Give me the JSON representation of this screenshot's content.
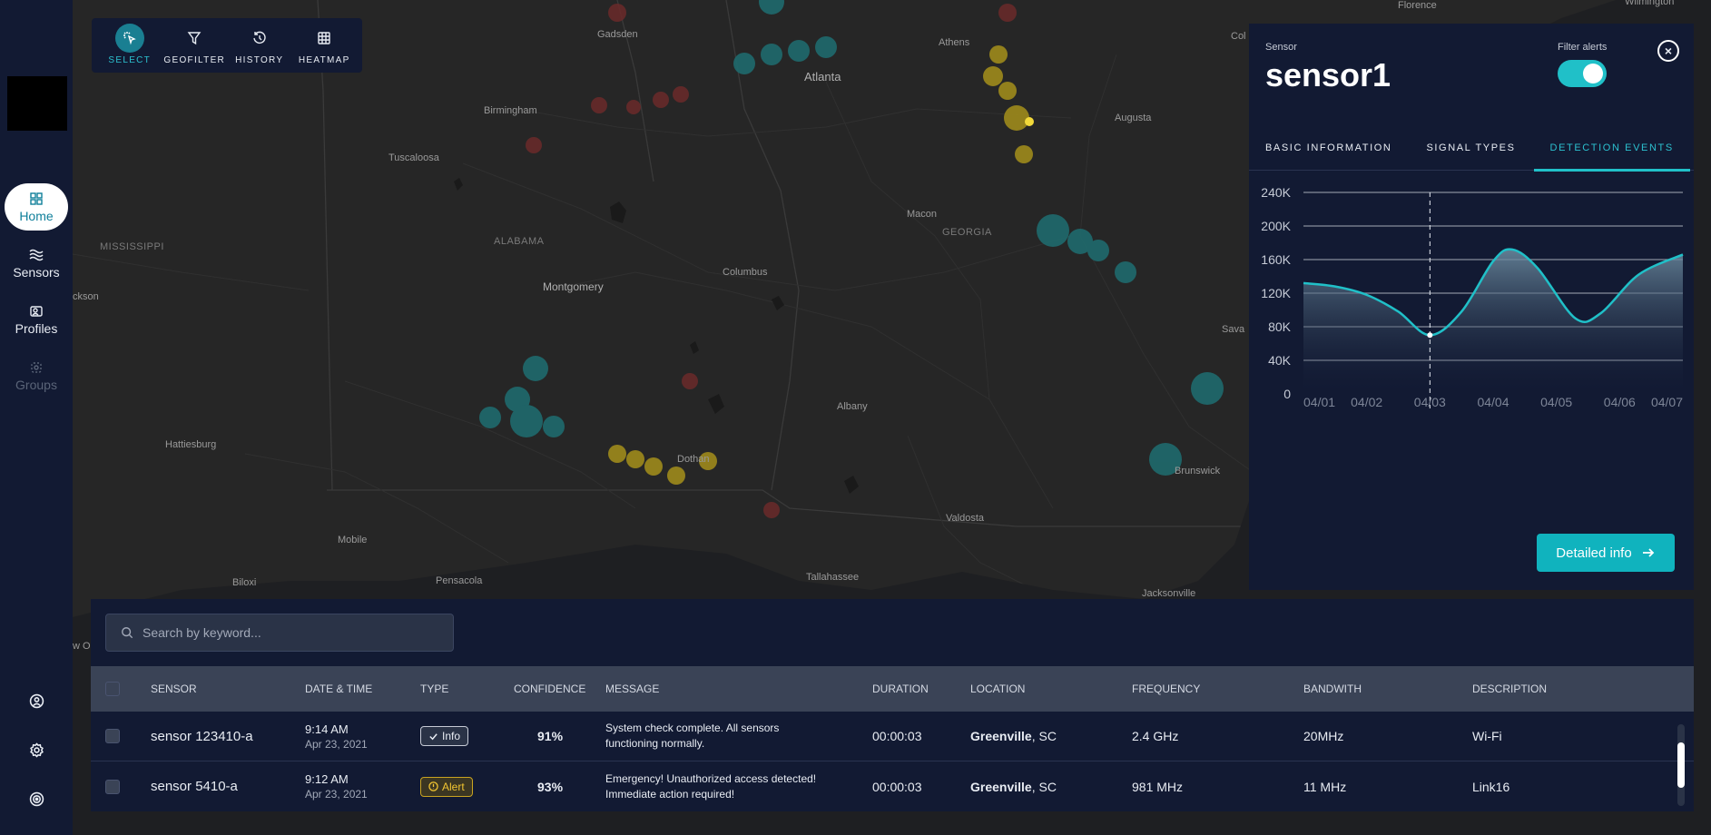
{
  "sidebar": {
    "items": [
      {
        "label": "Home",
        "icon": "grid-icon",
        "active": true
      },
      {
        "label": "Sensors",
        "icon": "waves-icon"
      },
      {
        "label": "Profiles",
        "icon": "profiles-icon"
      },
      {
        "label": "Groups",
        "icon": "groups-icon",
        "disabled": true
      }
    ],
    "bottom_icons": [
      "user-circle-icon",
      "settings-icon",
      "target-icon"
    ]
  },
  "map": {
    "cities": [
      "Florence",
      "Wilmington",
      "Gadsden",
      "Athens",
      "Atlanta",
      "Birmingham",
      "Augusta",
      "Tuscaloosa",
      "Macon",
      "GEORGIA",
      "ALABAMA",
      "MISSISSIPPI",
      "ckson",
      "Columbus",
      "Montgomery",
      "Sava",
      "Albany",
      "Hattiesburg",
      "Dothan",
      "Brunswick",
      "Valdosta",
      "Mobile",
      "Biloxi",
      "Pensacola",
      "Tallahassee",
      "Jacksonville",
      "Col",
      "w O"
    ]
  },
  "toolbar": {
    "tools": [
      {
        "label": "SELECT",
        "icon": "select-icon",
        "active": true
      },
      {
        "label": "GEOFILTER",
        "icon": "filter-icon"
      },
      {
        "label": "HISTORY",
        "icon": "history-icon"
      },
      {
        "label": "HEATMAP",
        "icon": "heatmap-icon"
      }
    ]
  },
  "panel": {
    "subtitle": "Sensor",
    "title": "sensor1",
    "filter_label": "Filter alerts",
    "filter_on": true,
    "close_icon": "close-icon",
    "tabs": [
      "BASIC INFORMATION",
      "SIGNAL TYPES",
      "DETECTION EVENTS"
    ],
    "active_tab": 2,
    "button_label": "Detailed info",
    "button_icon": "arrow-right-icon",
    "accent_color": "#20c0c8"
  },
  "chart_data": {
    "type": "area",
    "x": [
      "04/01",
      "04/02",
      "04/03",
      "04/04",
      "04/05",
      "04/06",
      "04/07"
    ],
    "yticks": [
      "0",
      "40K",
      "80K",
      "120K",
      "160K",
      "200K",
      "240K"
    ],
    "ylim": [
      0,
      240000
    ],
    "points": [
      {
        "x": 0.0,
        "y": 132000
      },
      {
        "x": 0.5,
        "y": 128000
      },
      {
        "x": 1.0,
        "y": 118000
      },
      {
        "x": 1.5,
        "y": 98000
      },
      {
        "x": 2.0,
        "y": 70000
      },
      {
        "x": 2.5,
        "y": 98000
      },
      {
        "x": 3.0,
        "y": 158000
      },
      {
        "x": 3.3,
        "y": 172000
      },
      {
        "x": 3.7,
        "y": 150000
      },
      {
        "x": 4.3,
        "y": 90000
      },
      {
        "x": 4.7,
        "y": 96000
      },
      {
        "x": 5.3,
        "y": 142000
      },
      {
        "x": 6.0,
        "y": 166000
      }
    ],
    "marker_x": 2.0,
    "grid": true
  },
  "table": {
    "search_placeholder": "Search by keyword...",
    "headers": [
      "SENSOR",
      "DATE & TIME",
      "TYPE",
      "CONFIDENCE",
      "MESSAGE",
      "DURATION",
      "LOCATION",
      "FREQUENCY",
      "BANDWITH",
      "DESCRIPTION"
    ],
    "rows": [
      {
        "sensor": "sensor 123410-a",
        "time": "9:14 AM",
        "date": "Apr 23, 2021",
        "type": "Info",
        "confidence": "91%",
        "message1": "System check complete. All sensors",
        "message2": "functioning normally.",
        "duration": "00:00:03",
        "city": "Greenville",
        "state": ", SC",
        "frequency": "2.4 GHz",
        "bandwidth": "20MHz",
        "description": "Wi-Fi"
      },
      {
        "sensor": "sensor 5410-a",
        "time": "9:12 AM",
        "date": "Apr 23, 2021",
        "type": "Alert",
        "confidence": "93%",
        "message1": "Emergency! Unauthorized access detected!",
        "message2": "Immediate action required!",
        "duration": "00:00:03",
        "city": "Greenville",
        "state": ", SC",
        "frequency": "981 MHz",
        "bandwidth": "11 MHz",
        "description": "Link16"
      }
    ]
  }
}
